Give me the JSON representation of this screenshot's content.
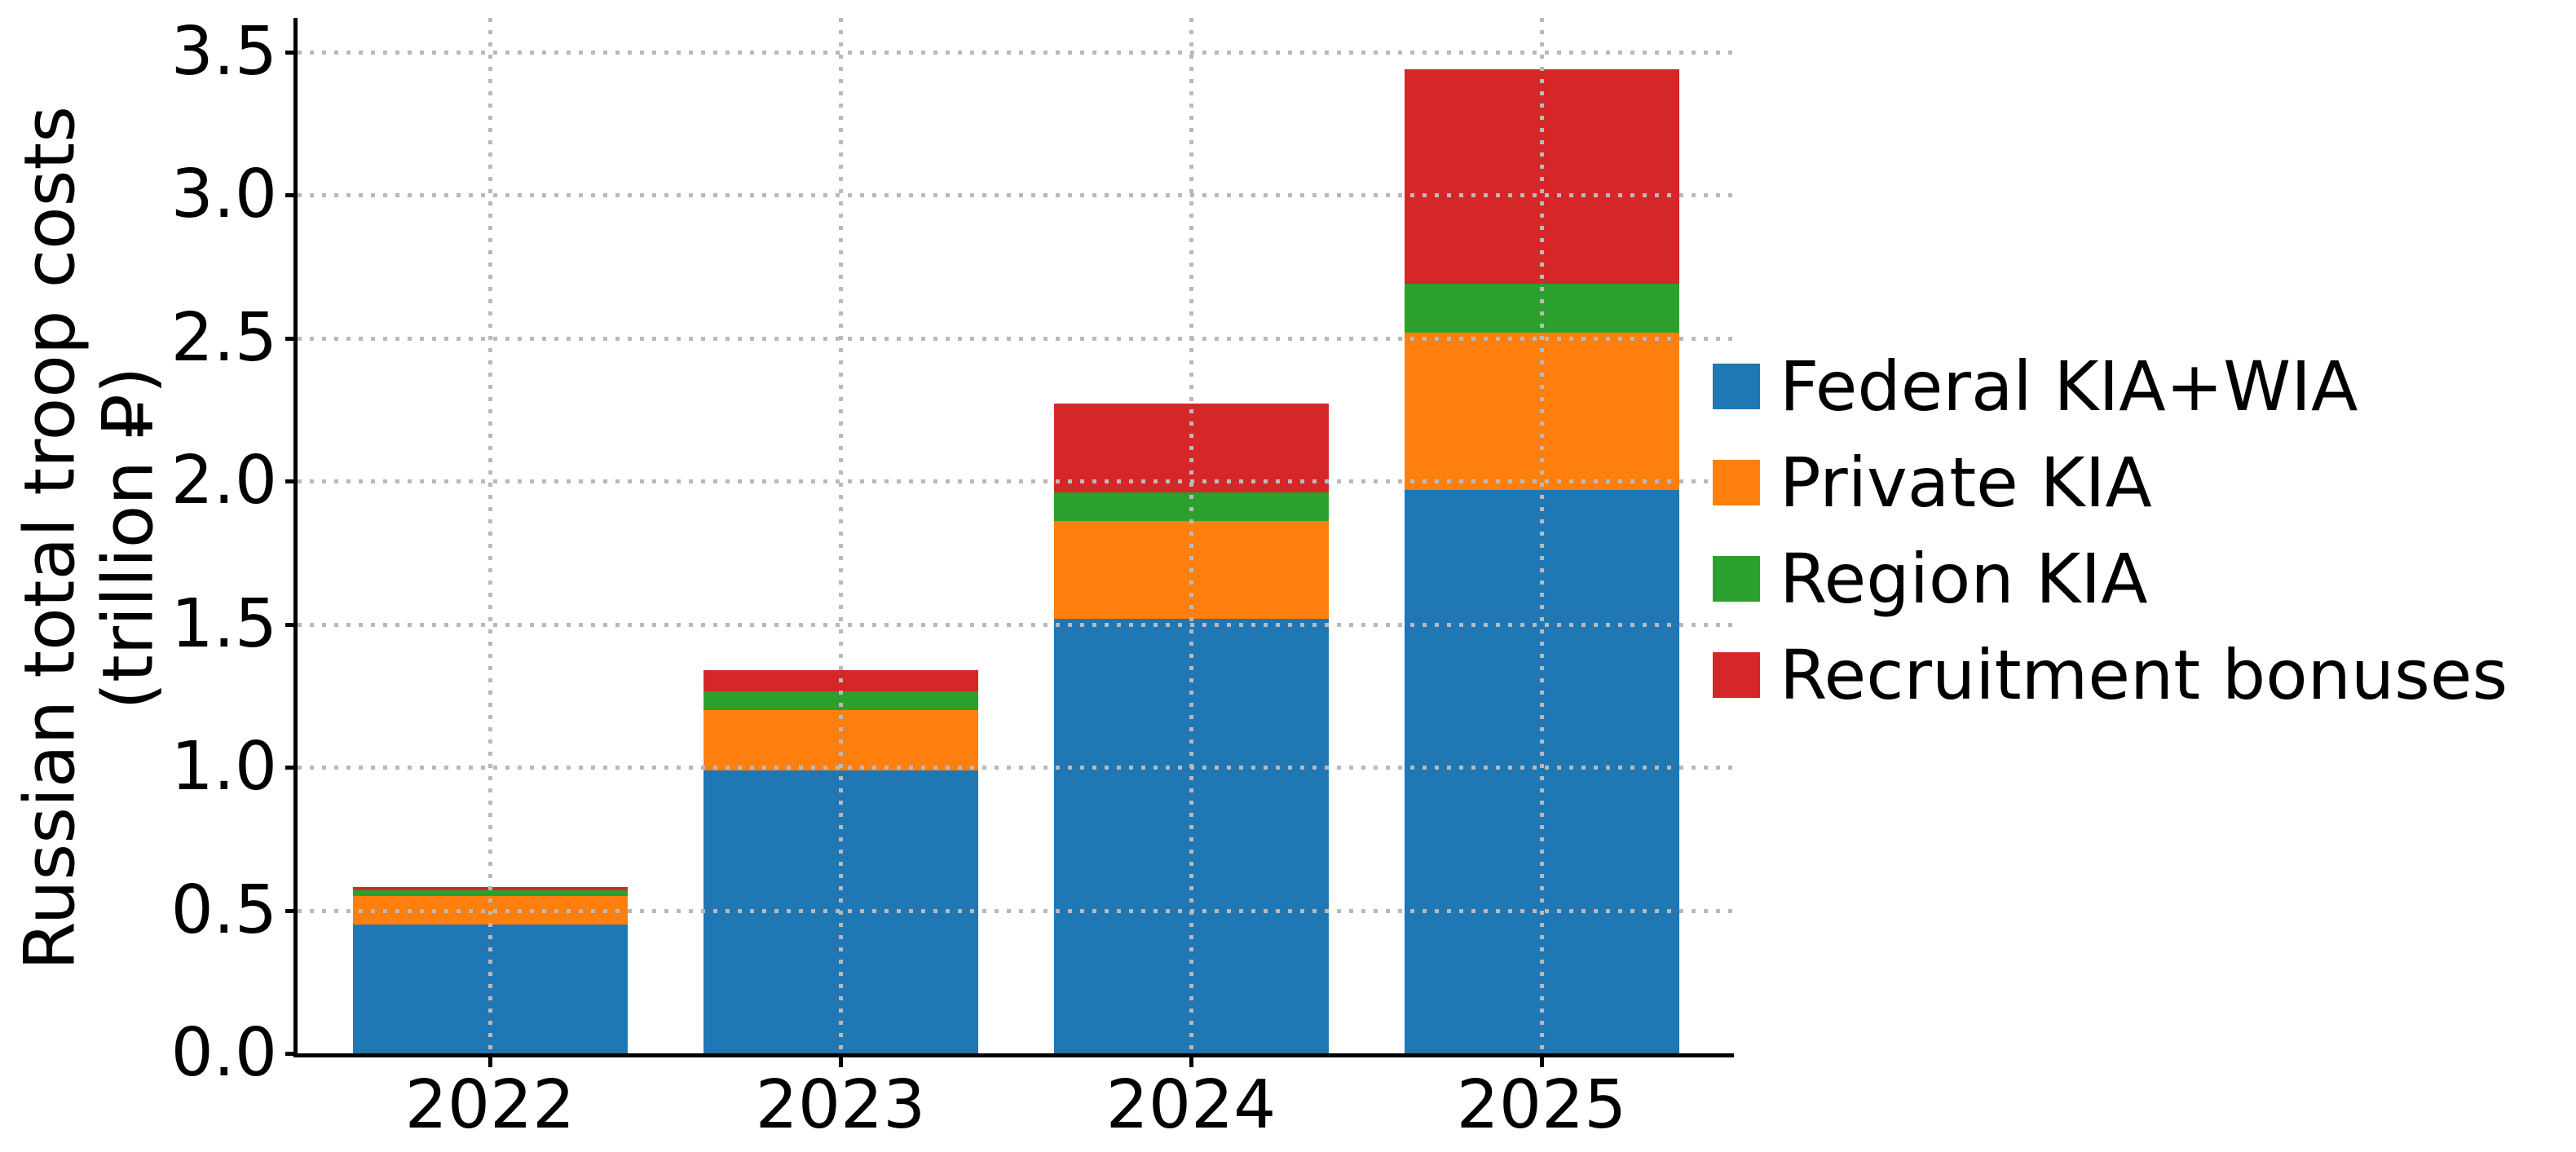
{
  "figure": {
    "background": "#ffffff"
  },
  "chart_data": {
    "type": "bar",
    "stacked": true,
    "title": "",
    "categories": [
      "2022",
      "2023",
      "2024",
      "2025"
    ],
    "series": [
      {
        "name": "Federal KIA+WIA",
        "color": "#1f77b4",
        "values": [
          0.45,
          0.99,
          1.52,
          1.97
        ]
      },
      {
        "name": "Private KIA",
        "color": "#ff7f0e",
        "values": [
          0.1,
          0.21,
          0.34,
          0.55
        ]
      },
      {
        "name": "Region KIA",
        "color": "#2ca02c",
        "values": [
          0.02,
          0.065,
          0.1,
          0.17
        ]
      },
      {
        "name": "Recruitment bonuses",
        "color": "#d62728",
        "values": [
          0.012,
          0.075,
          0.31,
          0.75
        ]
      }
    ],
    "stack_totals": [
      0.58,
      1.34,
      2.27,
      3.44
    ],
    "ylabel": "Russian total troop costs (trillion ₽)",
    "ylabel_lines": [
      "Russian total troop costs",
      "(trillion ₽)"
    ],
    "xlabel": "",
    "yticks": [
      "0.0",
      "0.5",
      "1.0",
      "1.5",
      "2.0",
      "2.5",
      "3.0",
      "3.5"
    ],
    "ytick_values": [
      0,
      0.5,
      1.0,
      1.5,
      2.0,
      2.5,
      3.0,
      3.5
    ],
    "ylim": [
      0,
      3.62
    ],
    "grid": {
      "horizontal": true,
      "vertical": true,
      "style": "dotted",
      "color": "#b9b9b9",
      "over_bars": true
    },
    "legend": {
      "position": "right-outside",
      "frame": false,
      "entries": [
        "Federal KIA+WIA",
        "Private KIA",
        "Region KIA",
        "Recruitment bonuses"
      ]
    }
  }
}
